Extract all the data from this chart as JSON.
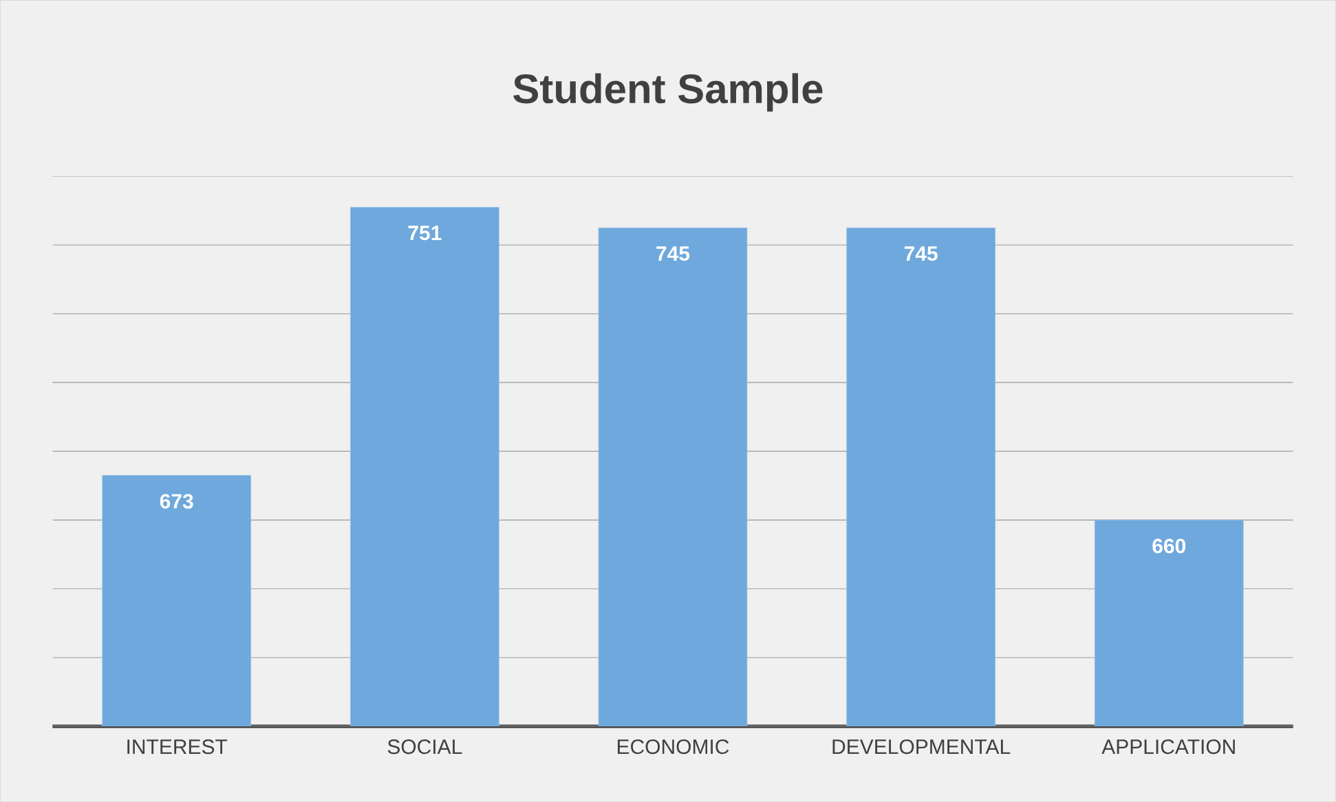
{
  "chart_data": {
    "type": "bar",
    "title": "Student Sample",
    "categories": [
      "INTEREST",
      "SOCIAL",
      "ECONOMIC",
      "DEVELOPMENTAL",
      "APPLICATION"
    ],
    "values": [
      673,
      751,
      745,
      745,
      660
    ],
    "color": "#6fa8dc",
    "ylim": [
      600,
      760
    ],
    "yticks": [
      {
        "value": 600,
        "label": null
      },
      {
        "value": 620,
        "label": null
      },
      {
        "value": 640,
        "label": null
      },
      {
        "value": 660,
        "label": null
      },
      {
        "value": 680,
        "label": null
      },
      {
        "value": 700,
        "label": null
      },
      {
        "value": 720,
        "label": null
      },
      {
        "value": 740,
        "label": null
      },
      {
        "value": 760,
        "label": null
      }
    ],
    "grid": "y",
    "tick_labels": "x",
    "data_labels": true
  }
}
